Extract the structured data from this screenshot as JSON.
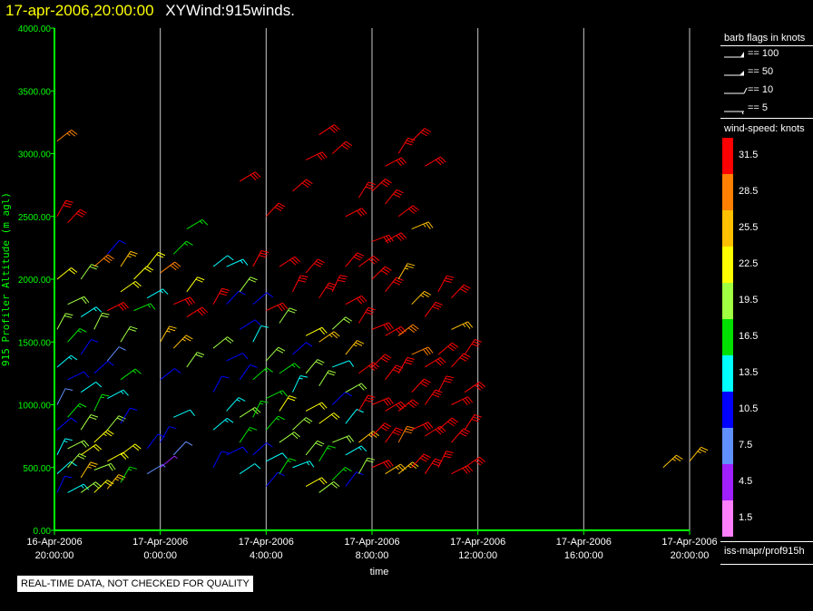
{
  "header": {
    "datetime": "17-apr-2006,20:00:00",
    "title": "XYWind:915winds."
  },
  "colors": {
    "axis": "#00ff00",
    "grid": "#c8c8c8",
    "background": "#000000"
  },
  "chart_data": {
    "type": "scatter",
    "ylabel": "915 Profiler Altitude (m agl)",
    "xlabel": "time",
    "ylim": [
      0,
      4000
    ],
    "yticks": [
      "0.00",
      "500.00",
      "1000.00",
      "1500.00",
      "2000.00",
      "2500.00",
      "3000.00",
      "3500.00",
      "4000.00"
    ],
    "xticks": [
      {
        "date": "16-Apr-2006",
        "time": "20:00:00"
      },
      {
        "date": "17-Apr-2006",
        "time": "0:00:00"
      },
      {
        "date": "17-Apr-2006",
        "time": "4:00:00"
      },
      {
        "date": "17-Apr-2006",
        "time": "8:00:00"
      },
      {
        "date": "17-Apr-2006",
        "time": "12:00:00"
      },
      {
        "date": "17-Apr-2006",
        "time": "16:00:00"
      },
      {
        "date": "17-Apr-2006",
        "time": "20:00:00"
      }
    ],
    "xrange_hours": [
      0,
      24
    ],
    "grid": "vertical",
    "series_description": "wind barbs",
    "profiles": [
      {
        "h": 0.1,
        "s": [
          [
            300,
            9
          ],
          [
            450,
            12
          ],
          [
            600,
            14
          ],
          [
            800,
            10
          ],
          [
            1000,
            8
          ],
          [
            1300,
            13
          ],
          [
            1600,
            18
          ],
          [
            2000,
            22
          ],
          [
            2500,
            30
          ],
          [
            3100,
            27
          ]
        ]
      },
      {
        "h": 0.5,
        "s": [
          [
            300,
            14
          ],
          [
            500,
            18
          ],
          [
            650,
            20
          ],
          [
            900,
            16
          ],
          [
            1200,
            11
          ],
          [
            1500,
            15
          ],
          [
            1800,
            20
          ],
          [
            2450,
            31
          ]
        ]
      },
      {
        "h": 1.0,
        "s": [
          [
            300,
            20
          ],
          [
            420,
            24
          ],
          [
            600,
            22
          ],
          [
            800,
            18
          ],
          [
            1100,
            12
          ],
          [
            1400,
            9
          ],
          [
            1700,
            14
          ],
          [
            2000,
            19
          ]
        ]
      },
      {
        "h": 1.5,
        "s": [
          [
            300,
            22
          ],
          [
            480,
            20
          ],
          [
            700,
            23
          ],
          [
            950,
            17
          ],
          [
            1250,
            10
          ],
          [
            1600,
            20
          ],
          [
            2100,
            28
          ]
        ]
      },
      {
        "h": 2.0,
        "s": [
          [
            330,
            24
          ],
          [
            550,
            21
          ],
          [
            800,
            19
          ],
          [
            1050,
            13
          ],
          [
            1350,
            8
          ],
          [
            1750,
            31
          ],
          [
            2200,
            10
          ]
        ]
      },
      {
        "h": 2.5,
        "s": [
          [
            380,
            16
          ],
          [
            600,
            22
          ],
          [
            850,
            11
          ],
          [
            1200,
            15
          ],
          [
            1500,
            18
          ],
          [
            1900,
            21
          ],
          [
            2100,
            24
          ]
        ]
      },
      {
        "h": 3.0,
        "s": [
          [
            1750,
            16
          ],
          [
            2000,
            21
          ]
        ]
      },
      {
        "h": 3.5,
        "s": [
          [
            450,
            6
          ],
          [
            650,
            9
          ],
          [
            1850,
            14
          ],
          [
            2100,
            22
          ]
        ]
      },
      {
        "h": 4.0,
        "s": [
          [
            500,
            5
          ],
          [
            700,
            11
          ],
          [
            1200,
            10
          ],
          [
            1500,
            25
          ],
          [
            2050,
            28
          ]
        ]
      },
      {
        "h": 4.5,
        "s": [
          [
            600,
            8
          ],
          [
            900,
            12
          ],
          [
            1450,
            26
          ],
          [
            1800,
            31
          ],
          [
            2200,
            16
          ]
        ]
      },
      {
        "h": 5.0,
        "s": [
          [
            1300,
            18
          ],
          [
            1700,
            31
          ],
          [
            1900,
            21
          ],
          [
            2400,
            17
          ]
        ]
      },
      {
        "h": 6.0,
        "s": [
          [
            500,
            11
          ],
          [
            800,
            13
          ],
          [
            1100,
            10
          ],
          [
            1450,
            18
          ],
          [
            1800,
            31
          ],
          [
            2100,
            12
          ]
        ]
      },
      {
        "h": 6.5,
        "s": [
          [
            600,
            9
          ],
          [
            950,
            14
          ],
          [
            1350,
            11
          ],
          [
            1800,
            10
          ],
          [
            2100,
            14
          ]
        ]
      },
      {
        "h": 7.0,
        "s": [
          [
            450,
            12
          ],
          [
            700,
            16
          ],
          [
            900,
            19
          ],
          [
            1200,
            10
          ],
          [
            1600,
            9
          ],
          [
            1900,
            20
          ],
          [
            2780,
            31
          ]
        ]
      },
      {
        "h": 7.5,
        "s": [
          [
            600,
            10
          ],
          [
            900,
            17
          ],
          [
            1200,
            15
          ],
          [
            1500,
            12
          ],
          [
            1800,
            10
          ],
          [
            2100,
            31
          ]
        ]
      },
      {
        "h": 8.0,
        "s": [
          [
            350,
            11
          ],
          [
            550,
            12
          ],
          [
            800,
            15
          ],
          [
            1050,
            17
          ],
          [
            1350,
            18
          ],
          [
            1750,
            31
          ],
          [
            2500,
            31
          ]
        ]
      },
      {
        "h": 8.5,
        "s": [
          [
            450,
            15
          ],
          [
            700,
            19
          ],
          [
            950,
            21
          ],
          [
            1250,
            16
          ],
          [
            1650,
            20
          ],
          [
            2100,
            31
          ]
        ]
      },
      {
        "h": 9.0,
        "s": [
          [
            500,
            13
          ],
          [
            800,
            18
          ],
          [
            1100,
            13
          ],
          [
            1400,
            10
          ],
          [
            1900,
            31
          ],
          [
            2700,
            31
          ]
        ]
      },
      {
        "h": 9.5,
        "s": [
          [
            350,
            21
          ],
          [
            600,
            18
          ],
          [
            950,
            21
          ],
          [
            1250,
            18
          ],
          [
            1550,
            22
          ],
          [
            2050,
            31
          ],
          [
            2950,
            31
          ]
        ]
      },
      {
        "h": 10.0,
        "s": [
          [
            300,
            18
          ],
          [
            550,
            17
          ],
          [
            850,
            22
          ],
          [
            1150,
            20
          ],
          [
            1500,
            24
          ],
          [
            1850,
            31
          ],
          [
            3150,
            31
          ]
        ]
      },
      {
        "h": 10.5,
        "s": [
          [
            400,
            15
          ],
          [
            700,
            19
          ],
          [
            1000,
            11
          ],
          [
            1300,
            12
          ],
          [
            1600,
            20
          ],
          [
            1900,
            31
          ],
          [
            3000,
            31
          ]
        ]
      },
      {
        "h": 11.0,
        "s": [
          [
            350,
            9
          ],
          [
            600,
            13
          ],
          [
            850,
            12
          ],
          [
            1100,
            18
          ],
          [
            1400,
            24
          ],
          [
            1800,
            31
          ],
          [
            2100,
            31
          ],
          [
            2500,
            31
          ]
        ]
      },
      {
        "h": 11.5,
        "s": [
          [
            450,
            19
          ],
          [
            700,
            24
          ],
          [
            950,
            31
          ],
          [
            1250,
            31
          ],
          [
            1650,
            31
          ],
          [
            2100,
            31
          ],
          [
            2650,
            31
          ]
        ]
      },
      {
        "h": 12.0,
        "s": [
          [
            500,
            31
          ],
          [
            750,
            31
          ],
          [
            1000,
            31
          ],
          [
            1300,
            31
          ],
          [
            1600,
            31
          ],
          [
            2000,
            31
          ],
          [
            2300,
            31
          ],
          [
            2700,
            31
          ]
        ]
      },
      {
        "h": 12.5,
        "s": [
          [
            450,
            26
          ],
          [
            700,
            31
          ],
          [
            950,
            31
          ],
          [
            1200,
            31
          ],
          [
            1550,
            31
          ],
          [
            1900,
            31
          ],
          [
            2300,
            31
          ],
          [
            2600,
            31
          ],
          [
            2900,
            31
          ]
        ]
      },
      {
        "h": 13.0,
        "s": [
          [
            450,
            24
          ],
          [
            700,
            28
          ],
          [
            950,
            31
          ],
          [
            1250,
            31
          ],
          [
            1550,
            28
          ],
          [
            2000,
            24
          ],
          [
            2500,
            31
          ],
          [
            3000,
            31
          ]
        ]
      },
      {
        "h": 13.5,
        "s": [
          [
            500,
            31
          ],
          [
            800,
            31
          ],
          [
            1100,
            31
          ],
          [
            1400,
            29
          ],
          [
            1800,
            26
          ],
          [
            2400,
            24
          ],
          [
            3100,
            31
          ]
        ]
      },
      {
        "h": 14.0,
        "s": [
          [
            450,
            31
          ],
          [
            750,
            31
          ],
          [
            1000,
            31
          ],
          [
            1300,
            31
          ],
          [
            1700,
            31
          ],
          [
            2900,
            31
          ]
        ]
      },
      {
        "h": 14.5,
        "s": [
          [
            500,
            31
          ],
          [
            800,
            31
          ],
          [
            1100,
            31
          ],
          [
            1400,
            31
          ],
          [
            1900,
            31
          ]
        ]
      },
      {
        "h": 15.0,
        "s": [
          [
            450,
            31
          ],
          [
            700,
            31
          ],
          [
            1000,
            31
          ],
          [
            1300,
            31
          ],
          [
            1600,
            26
          ],
          [
            1850,
            31
          ]
        ]
      },
      {
        "h": 15.5,
        "s": [
          [
            500,
            31
          ],
          [
            800,
            31
          ],
          [
            1100,
            31
          ],
          [
            1400,
            31
          ]
        ]
      },
      {
        "h": 23.0,
        "s": [
          [
            500,
            26
          ]
        ]
      },
      {
        "h": 24.0,
        "s": [
          [
            550,
            26
          ]
        ]
      }
    ]
  },
  "legend": {
    "flags_title": "barb flags in knots",
    "flags": [
      "== 100",
      "== 50",
      "== 10",
      "== 5"
    ],
    "speed_title": "wind-speed: knots",
    "bins": [
      {
        "label": "31.5",
        "color": "#ff0000"
      },
      {
        "label": "28.5",
        "color": "#ff8000"
      },
      {
        "label": "25.5",
        "color": "#ffc000"
      },
      {
        "label": "22.5",
        "color": "#ffff00"
      },
      {
        "label": "19.5",
        "color": "#a0ff40"
      },
      {
        "label": "16.5",
        "color": "#00e000"
      },
      {
        "label": "13.5",
        "color": "#00ffff"
      },
      {
        "label": "10.5",
        "color": "#0000ff"
      },
      {
        "label": "7.5",
        "color": "#6090ff"
      },
      {
        "label": "4.5",
        "color": "#a020ff"
      },
      {
        "label": "1.5",
        "color": "#ff80ff"
      }
    ],
    "footer": "iss-mapr/prof915h"
  },
  "disclaimer": "REAL-TIME DATA, NOT CHECKED FOR QUALITY"
}
